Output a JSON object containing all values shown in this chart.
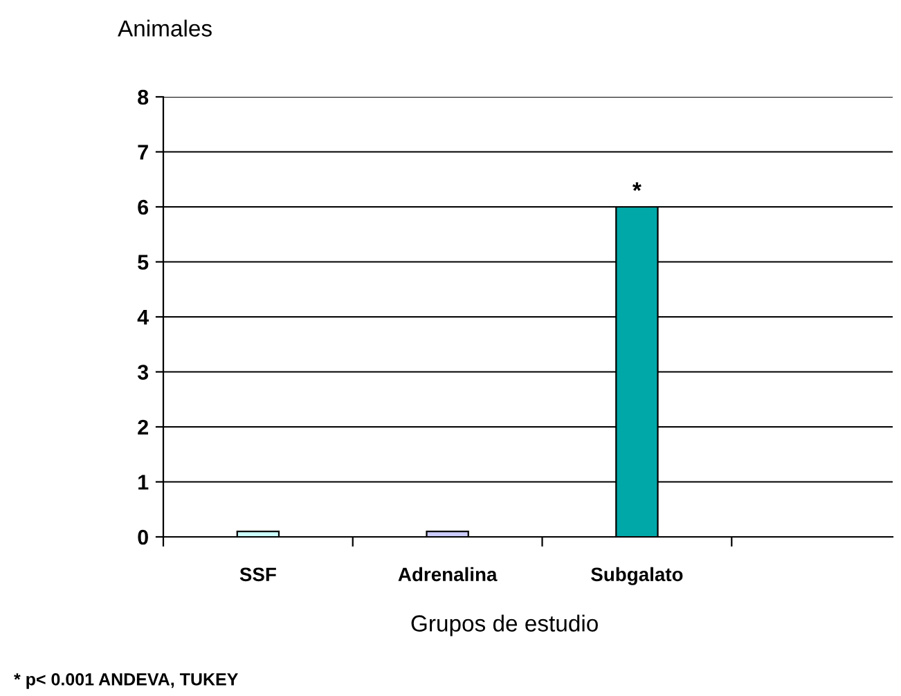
{
  "chart_data": {
    "type": "bar",
    "ylabel": "Animales",
    "xlabel": "Grupos de estudio",
    "categories": [
      "SSF",
      "Adrenalina",
      "Subgalato"
    ],
    "values": [
      0.1,
      0.1,
      6
    ],
    "colors": [
      "#ccffff",
      "#ccccff",
      "#00a8a8"
    ],
    "ylim": [
      0,
      8
    ],
    "yticks": [
      0,
      1,
      2,
      3,
      4,
      5,
      6,
      7,
      8
    ],
    "grid": "y",
    "annotations": [
      {
        "text": "*",
        "x": "Subgalato",
        "y": 6
      },
      "* p< 0.001 ANDEVA, TUKEY"
    ]
  }
}
